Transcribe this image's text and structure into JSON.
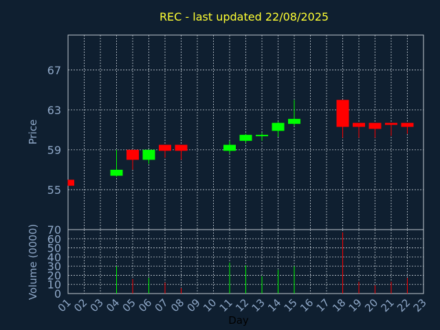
{
  "chart_data": {
    "type": "candlestick",
    "title": "REC - last updated 22/08/2025",
    "xlabel": "Day",
    "ylabel_price": "Price",
    "ylabel_volume": "Volume (0000)",
    "price_yticks": [
      55,
      59,
      63,
      67
    ],
    "price_ylim": [
      51.0,
      70.5
    ],
    "volume_yticks": [
      0,
      10,
      20,
      30,
      40,
      50,
      60,
      70
    ],
    "volume_ylim": [
      0,
      70
    ],
    "x_ticks": [
      "01",
      "02",
      "03",
      "04",
      "05",
      "06",
      "07",
      "08",
      "09",
      "10",
      "11",
      "12",
      "13",
      "14",
      "15",
      "16",
      "17",
      "18",
      "19",
      "20",
      "21",
      "22",
      "23"
    ],
    "grid": true,
    "colors": {
      "up": "#00ff00",
      "down": "#ff0000",
      "background": "#0f1f30",
      "title": "#ffff33",
      "text": "#8fa8c8"
    },
    "candles": [
      {
        "day": 1,
        "open": 56.0,
        "close": 55.4,
        "high": 56.0,
        "low": 55.4,
        "volume": 0
      },
      {
        "day": 4,
        "open": 56.4,
        "close": 57.0,
        "high": 59.0,
        "low": 56.3,
        "volume": 30
      },
      {
        "day": 5,
        "open": 59.0,
        "close": 58.0,
        "high": 59.0,
        "low": 57.0,
        "volume": 16
      },
      {
        "day": 6,
        "open": 58.0,
        "close": 59.0,
        "high": 59.0,
        "low": 57.6,
        "volume": 17
      },
      {
        "day": 7,
        "open": 59.5,
        "close": 58.9,
        "high": 59.5,
        "low": 58.2,
        "volume": 12
      },
      {
        "day": 8,
        "open": 59.5,
        "close": 58.9,
        "high": 59.5,
        "low": 58.0,
        "volume": 6
      },
      {
        "day": 11,
        "open": 58.9,
        "close": 59.5,
        "high": 59.9,
        "low": 58.6,
        "volume": 34
      },
      {
        "day": 12,
        "open": 59.9,
        "close": 60.5,
        "high": 60.6,
        "low": 59.7,
        "volume": 31
      },
      {
        "day": 13,
        "open": 60.4,
        "close": 60.5,
        "high": 60.7,
        "low": 59.9,
        "volume": 19
      },
      {
        "day": 14,
        "open": 60.9,
        "close": 61.7,
        "high": 61.8,
        "low": 60.3,
        "volume": 26
      },
      {
        "day": 15,
        "open": 61.6,
        "close": 62.1,
        "high": 64.0,
        "low": 61.4,
        "volume": 30
      },
      {
        "day": 18,
        "open": 64.0,
        "close": 61.3,
        "high": 64.0,
        "low": 60.2,
        "volume": 67
      },
      {
        "day": 19,
        "open": 61.7,
        "close": 61.3,
        "high": 61.7,
        "low": 60.2,
        "volume": 13
      },
      {
        "day": 20,
        "open": 61.7,
        "close": 61.1,
        "high": 61.7,
        "low": 60.2,
        "volume": 9
      },
      {
        "day": 21,
        "open": 61.7,
        "close": 61.5,
        "high": 61.7,
        "low": 60.4,
        "volume": 13
      },
      {
        "day": 22,
        "open": 61.7,
        "close": 61.3,
        "high": 61.7,
        "low": 60.6,
        "volume": 17
      }
    ]
  }
}
